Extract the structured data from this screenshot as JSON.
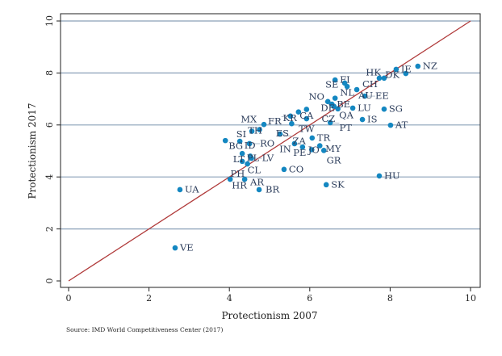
{
  "chart_data": {
    "type": "scatter",
    "xlabel": "Protectionism 2007",
    "ylabel": "Protectionism 2017",
    "xlim": [
      0,
      10
    ],
    "ylim": [
      0,
      10
    ],
    "xticks": [
      0,
      2,
      4,
      6,
      8,
      10
    ],
    "yticks": [
      0,
      2,
      4,
      6,
      8,
      10
    ],
    "grid": "horizontal",
    "reference_line": {
      "from": [
        0,
        0
      ],
      "to": [
        10,
        10
      ],
      "color": "#b03a3a"
    },
    "point_color": "#1487c1",
    "points": [
      {
        "label": "NZ",
        "x": 8.69,
        "y": 8.26
      },
      {
        "label": "IE",
        "x": 8.15,
        "y": 8.14
      },
      {
        "label": "DK",
        "x": 8.39,
        "y": 7.98
      },
      {
        "label": "CH",
        "x": 7.73,
        "y": 7.8
      },
      {
        "label": "HK",
        "x": 7.85,
        "y": 7.8
      },
      {
        "label": "FI",
        "x": 6.63,
        "y": 7.73
      },
      {
        "label": "SE",
        "x": 6.87,
        "y": 7.61
      },
      {
        "label": "NL",
        "x": 6.93,
        "y": 7.48
      },
      {
        "label": "AU",
        "x": 7.17,
        "y": 7.36
      },
      {
        "label": "EE",
        "x": 7.37,
        "y": 7.11
      },
      {
        "label": "BE",
        "x": 6.63,
        "y": 7.03
      },
      {
        "label": "DE",
        "x": 6.45,
        "y": 6.9
      },
      {
        "label": "NO",
        "x": 6.55,
        "y": 6.8
      },
      {
        "label": "QA",
        "x": 6.6,
        "y": 6.72
      },
      {
        "label": "CZ",
        "x": 6.7,
        "y": 6.62
      },
      {
        "label": "LU",
        "x": 7.07,
        "y": 6.65
      },
      {
        "label": "SG",
        "x": 7.85,
        "y": 6.61
      },
      {
        "label": "CA",
        "x": 5.92,
        "y": 6.6
      },
      {
        "label": "KR",
        "x": 5.72,
        "y": 6.5
      },
      {
        "label": "TW",
        "x": 5.92,
        "y": 6.24
      },
      {
        "label": "FR",
        "x": 5.52,
        "y": 6.34
      },
      {
        "label": "ES",
        "x": 5.55,
        "y": 6.05
      },
      {
        "label": "PT",
        "x": 6.51,
        "y": 6.09
      },
      {
        "label": "IS",
        "x": 7.31,
        "y": 6.21
      },
      {
        "label": "AT",
        "x": 8.01,
        "y": 5.99
      },
      {
        "label": "TH",
        "x": 4.86,
        "y": 6.02
      },
      {
        "label": "SI",
        "x": 4.56,
        "y": 5.76
      },
      {
        "label": "MX",
        "x": 4.75,
        "y": 5.82
      },
      {
        "label": "ZA",
        "x": 5.26,
        "y": 5.65
      },
      {
        "label": "BG",
        "x": 3.9,
        "y": 5.4
      },
      {
        "label": "ID",
        "x": 4.26,
        "y": 5.37
      },
      {
        "label": "RO",
        "x": 4.5,
        "y": 5.28
      },
      {
        "label": "TR",
        "x": 6.06,
        "y": 5.5
      },
      {
        "label": "IN",
        "x": 5.62,
        "y": 5.28
      },
      {
        "label": "JO",
        "x": 5.82,
        "y": 5.15
      },
      {
        "label": "MY",
        "x": 6.25,
        "y": 5.2
      },
      {
        "label": "PE",
        "x": 6.05,
        "y": 5.05
      },
      {
        "label": "GR",
        "x": 6.35,
        "y": 5.02
      },
      {
        "label": "PL",
        "x": 4.32,
        "y": 4.9
      },
      {
        "label": "LT",
        "x": 4.52,
        "y": 4.8
      },
      {
        "label": "LV",
        "x": 4.55,
        "y": 4.72
      },
      {
        "label": "CL",
        "x": 4.32,
        "y": 4.6
      },
      {
        "label": "PH",
        "x": 4.45,
        "y": 4.5
      },
      {
        "label": "CO",
        "x": 5.36,
        "y": 4.29
      },
      {
        "label": "HR",
        "x": 4.02,
        "y": 3.91
      },
      {
        "label": "AR",
        "x": 4.38,
        "y": 3.91
      },
      {
        "label": "BR",
        "x": 4.74,
        "y": 3.51
      },
      {
        "label": "SK",
        "x": 6.41,
        "y": 3.7
      },
      {
        "label": "HU",
        "x": 7.73,
        "y": 4.04
      },
      {
        "label": "UA",
        "x": 2.77,
        "y": 3.51
      },
      {
        "label": "VE",
        "x": 2.65,
        "y": 1.27
      }
    ]
  },
  "source": "Source: IMD World Competitiveness Center (2017)"
}
